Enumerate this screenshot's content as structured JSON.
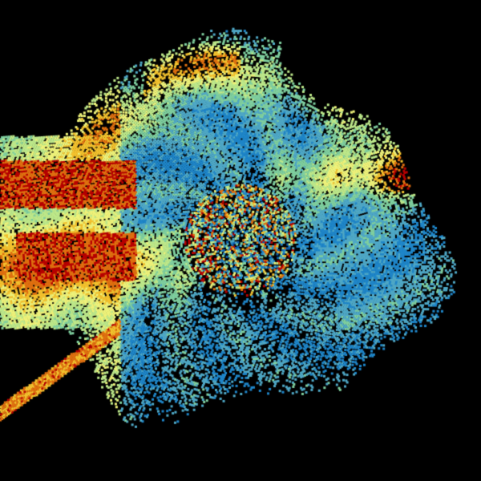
{
  "image": {
    "kind": "radar-scan",
    "background_color": "#000000",
    "palette": [
      "#08306b",
      "#0b5cad",
      "#1f86c9",
      "#4fa8c6",
      "#7fcf9f",
      "#bde88a",
      "#eef27a",
      "#f3c22e",
      "#e07010",
      "#b80000"
    ]
  }
}
